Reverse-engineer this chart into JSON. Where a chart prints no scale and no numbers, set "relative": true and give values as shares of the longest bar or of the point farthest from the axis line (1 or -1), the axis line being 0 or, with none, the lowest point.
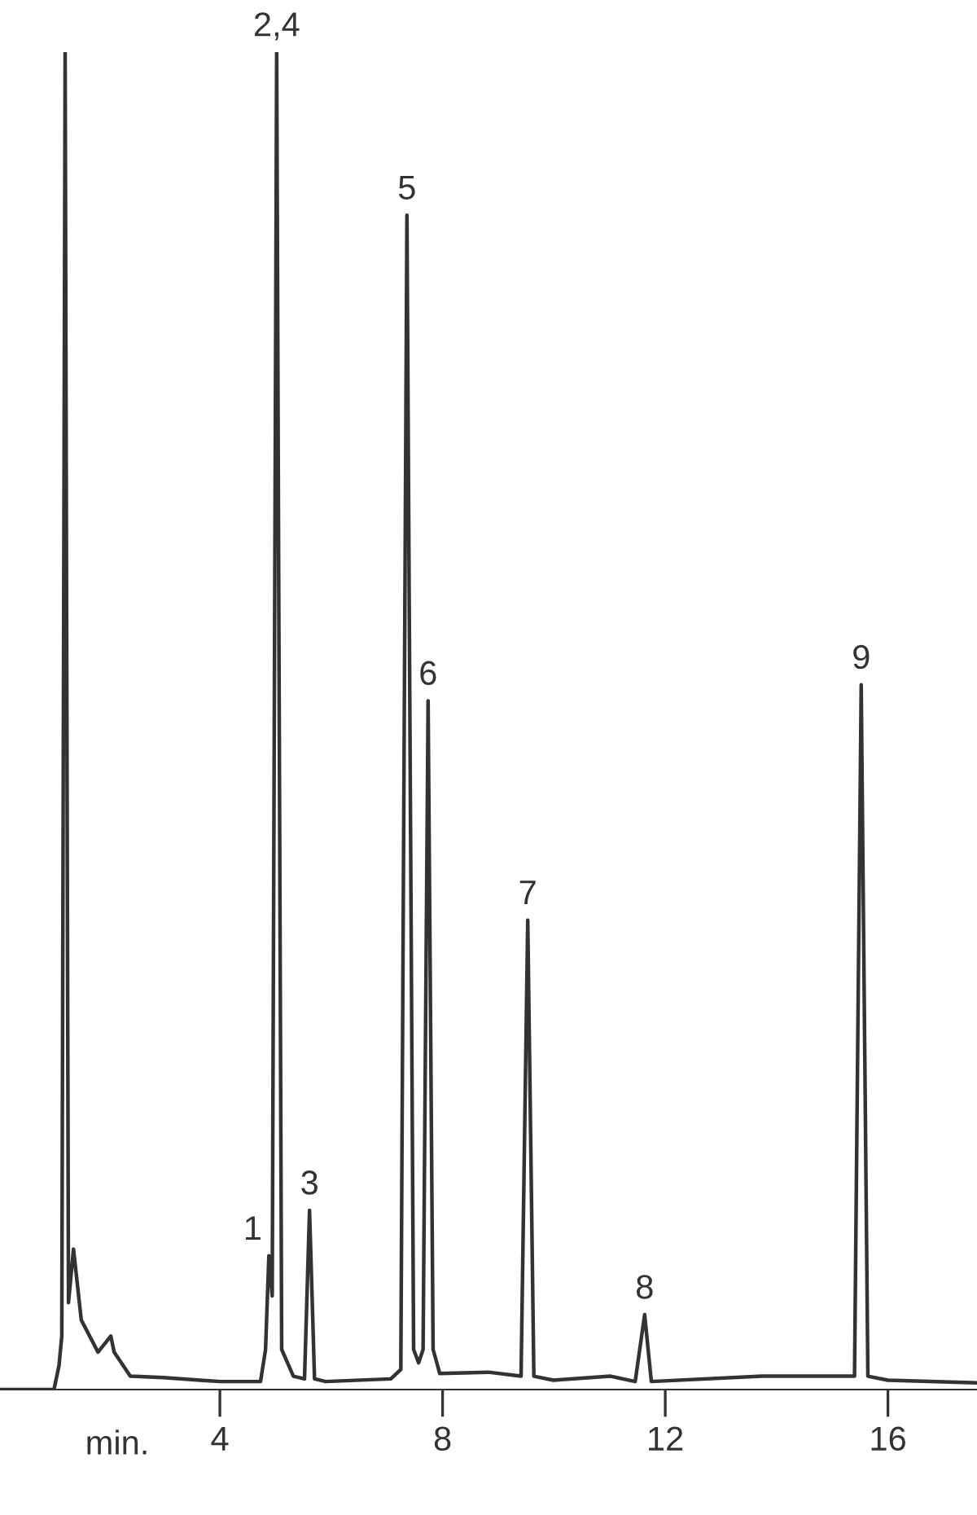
{
  "chart_data": {
    "type": "line",
    "relative": true,
    "xlabel": "min.",
    "xlim": [
      0.05,
      17.6
    ],
    "xticks": [
      4,
      8,
      12,
      16
    ],
    "grid": false,
    "legend": false,
    "marker": "none",
    "line_style": "solid",
    "series": [
      {
        "color": "#333333",
        "x": [
          0.05,
          1.02,
          1.11,
          1.16,
          1.22,
          1.28,
          1.37,
          1.51,
          1.81,
          2.04,
          2.1,
          2.39,
          2.98,
          4.0,
          4.73,
          4.82,
          4.88,
          4.94,
          5.02,
          5.11,
          5.32,
          5.52,
          5.61,
          5.7,
          5.9,
          7.07,
          7.25,
          7.36,
          7.48,
          7.57,
          7.65,
          7.74,
          7.83,
          7.95,
          8.82,
          9.41,
          9.53,
          9.64,
          9.99,
          11.02,
          11.46,
          11.63,
          11.75,
          13.74,
          14.56,
          15.4,
          15.52,
          15.64,
          16.0,
          17.6
        ],
        "values": [
          0,
          0,
          0.018,
          0.04,
          1.0,
          0.065,
          0.105,
          0.052,
          0.028,
          0.04,
          0.028,
          0.01,
          0.009,
          0.006,
          0.006,
          0.03,
          0.1,
          0.07,
          1.0,
          0.03,
          0.01,
          0.008,
          0.134,
          0.008,
          0.006,
          0.008,
          0.015,
          0.878,
          0.03,
          0.02,
          0.03,
          0.515,
          0.03,
          0.012,
          0.013,
          0.01,
          0.351,
          0.01,
          0.007,
          0.01,
          0.006,
          0.056,
          0.006,
          0.01,
          0.01,
          0.01,
          0.527,
          0.01,
          0.007,
          0.005
        ]
      }
    ],
    "annotations": [
      {
        "text": "1",
        "x": 4.88,
        "y": 0.1
      },
      {
        "text": "2,4",
        "x": 5.02,
        "y": 1.0
      },
      {
        "text": "3",
        "x": 5.61,
        "y": 0.134
      },
      {
        "text": "5",
        "x": 7.36,
        "y": 0.878
      },
      {
        "text": "6",
        "x": 7.74,
        "y": 0.515
      },
      {
        "text": "7",
        "x": 9.53,
        "y": 0.351
      },
      {
        "text": "8",
        "x": 11.63,
        "y": 0.056
      },
      {
        "text": "9",
        "x": 15.52,
        "y": 0.527
      }
    ]
  }
}
